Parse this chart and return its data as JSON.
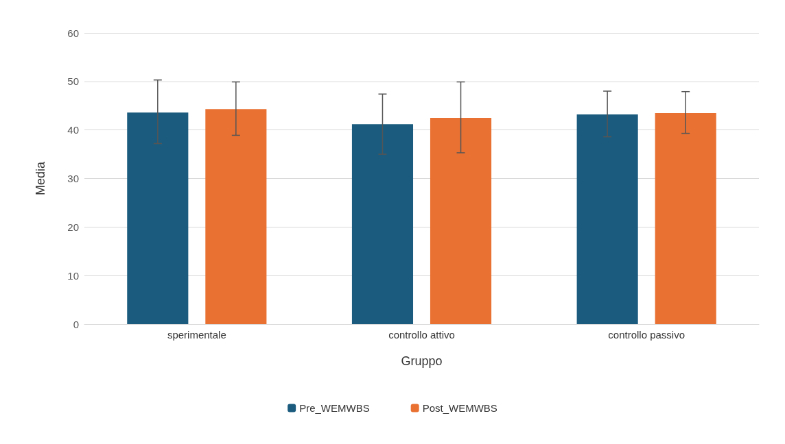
{
  "chart_data": {
    "type": "bar",
    "xlabel": "Gruppo",
    "ylabel": "Media",
    "categories": [
      "sperimentale",
      "controllo attivo",
      "controllo passivo"
    ],
    "series": [
      {
        "name": "Pre_WEMWBS",
        "color": "#1b5c7e",
        "values": [
          43.6,
          41.2,
          43.2
        ],
        "errors": [
          [
            37.2,
            50.3
          ],
          [
            35.0,
            47.4
          ],
          [
            38.6,
            48.0
          ]
        ]
      },
      {
        "name": "Post_WEMWBS",
        "color": "#e97132",
        "values": [
          44.3,
          42.5,
          43.5
        ],
        "errors": [
          [
            38.9,
            49.9
          ],
          [
            35.3,
            49.9
          ],
          [
            39.3,
            47.9
          ]
        ]
      }
    ],
    "ylim": [
      0,
      60
    ],
    "yticks": [
      0,
      10,
      20,
      30,
      40,
      50,
      60
    ],
    "grid": "y",
    "legend": "bottom"
  }
}
